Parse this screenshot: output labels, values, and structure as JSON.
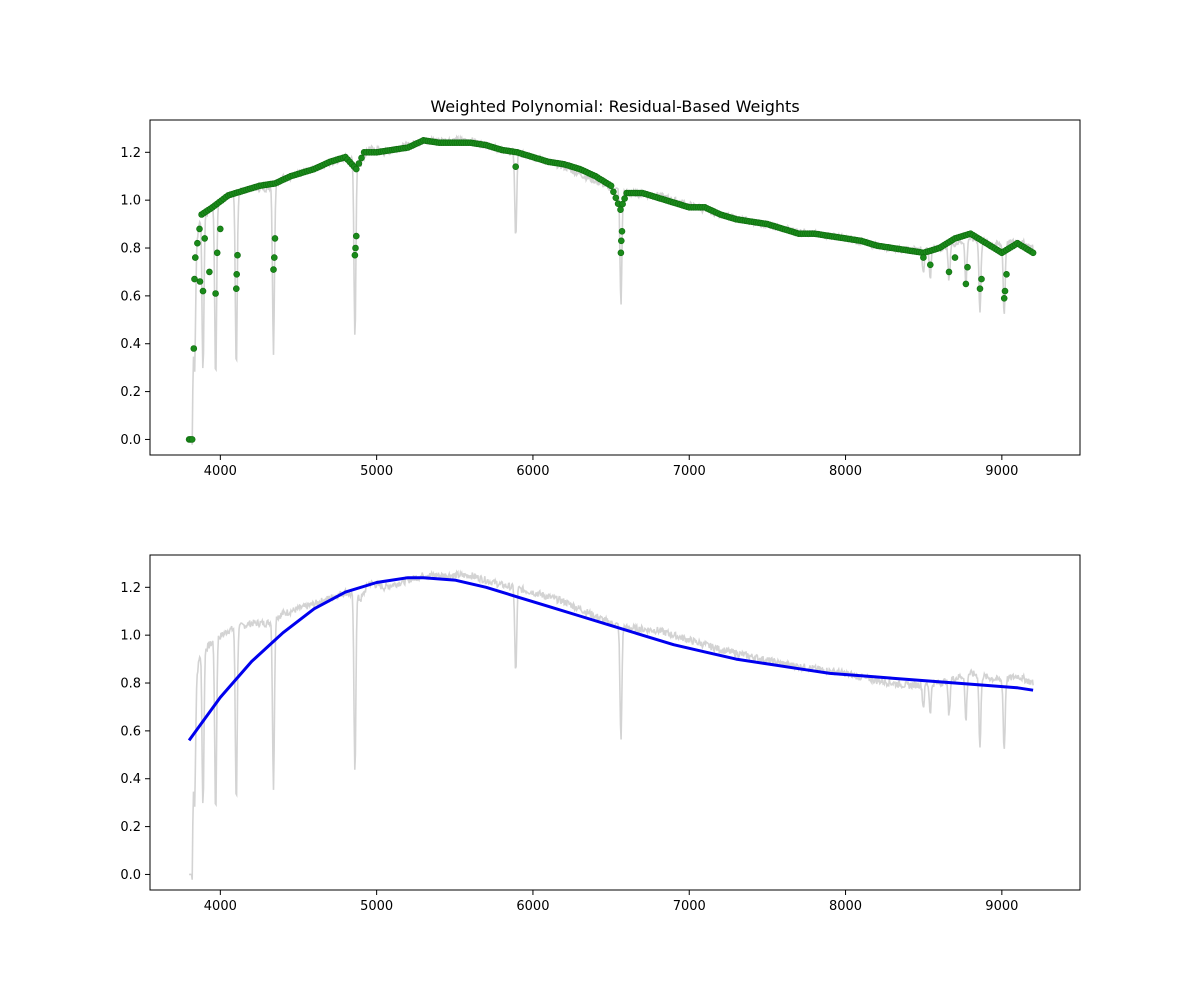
{
  "chart_data": [
    {
      "type": "scatter",
      "title": "Weighted Polynomial: Residual-Based Weights",
      "xlabel": "",
      "ylabel": "",
      "xlim": [
        3550,
        9500
      ],
      "ylim": [
        -0.065,
        1.335
      ],
      "xticks": [
        4000,
        5000,
        6000,
        7000,
        8000,
        9000
      ],
      "yticks": [
        0.0,
        0.2,
        0.4,
        0.6,
        0.8,
        1.0,
        1.2
      ],
      "grid": false,
      "colors": {
        "spectrum": "#d3d3d3",
        "points": "#1a8a1a",
        "points_edge": "#0f6b0f"
      },
      "spectrum_continuum": [
        [
          3800,
          0.0
        ],
        [
          3820,
          0.0
        ],
        [
          3830,
          0.75
        ],
        [
          3870,
          0.92
        ],
        [
          3950,
          0.97
        ],
        [
          4050,
          1.02
        ],
        [
          4200,
          1.05
        ],
        [
          4300,
          1.05
        ],
        [
          4400,
          1.09
        ],
        [
          4600,
          1.13
        ],
        [
          4800,
          1.18
        ],
        [
          4900,
          1.15
        ],
        [
          4950,
          1.22
        ],
        [
          5050,
          1.2
        ],
        [
          5150,
          1.22
        ],
        [
          5300,
          1.25
        ],
        [
          5450,
          1.25
        ],
        [
          5600,
          1.25
        ],
        [
          5800,
          1.21
        ],
        [
          6000,
          1.18
        ],
        [
          6200,
          1.14
        ],
        [
          6400,
          1.08
        ],
        [
          6500,
          1.05
        ],
        [
          6600,
          1.03
        ],
        [
          6800,
          1.02
        ],
        [
          7000,
          0.98
        ],
        [
          7200,
          0.94
        ],
        [
          7400,
          0.91
        ],
        [
          7600,
          0.88
        ],
        [
          7800,
          0.86
        ],
        [
          8000,
          0.84
        ],
        [
          8200,
          0.81
        ],
        [
          8400,
          0.79
        ],
        [
          8600,
          0.8
        ],
        [
          8800,
          0.84
        ],
        [
          9000,
          0.81
        ],
        [
          9100,
          0.83
        ],
        [
          9200,
          0.8
        ]
      ],
      "spectrum_absorption": [
        [
          3835,
          0.27
        ],
        [
          3889,
          0.29
        ],
        [
          3970,
          0.26
        ],
        [
          4102,
          0.3
        ],
        [
          4340,
          0.36
        ],
        [
          4861,
          0.43
        ],
        [
          5890,
          0.84
        ],
        [
          6563,
          0.56
        ],
        [
          8498,
          0.7
        ],
        [
          8542,
          0.68
        ],
        [
          8662,
          0.66
        ],
        [
          8770,
          0.64
        ],
        [
          8860,
          0.53
        ],
        [
          9015,
          0.52
        ]
      ],
      "weighted_points_continuum": [
        [
          3800,
          0.0
        ],
        [
          3820,
          0.0
        ],
        [
          3840,
          0.76
        ],
        [
          3880,
          0.94
        ],
        [
          3950,
          0.97
        ],
        [
          4050,
          1.02
        ],
        [
          4150,
          1.04
        ],
        [
          4250,
          1.06
        ],
        [
          4350,
          1.07
        ],
        [
          4450,
          1.1
        ],
        [
          4600,
          1.13
        ],
        [
          4700,
          1.16
        ],
        [
          4800,
          1.18
        ],
        [
          4870,
          1.13
        ],
        [
          4920,
          1.2
        ],
        [
          5000,
          1.2
        ],
        [
          5100,
          1.21
        ],
        [
          5200,
          1.22
        ],
        [
          5300,
          1.25
        ],
        [
          5400,
          1.24
        ],
        [
          5500,
          1.24
        ],
        [
          5600,
          1.24
        ],
        [
          5700,
          1.23
        ],
        [
          5800,
          1.21
        ],
        [
          5900,
          1.2
        ],
        [
          6000,
          1.18
        ],
        [
          6100,
          1.16
        ],
        [
          6200,
          1.15
        ],
        [
          6300,
          1.13
        ],
        [
          6400,
          1.1
        ],
        [
          6500,
          1.06
        ],
        [
          6560,
          0.96
        ],
        [
          6600,
          1.03
        ],
        [
          6700,
          1.03
        ],
        [
          6800,
          1.01
        ],
        [
          6900,
          0.99
        ],
        [
          7000,
          0.97
        ],
        [
          7100,
          0.97
        ],
        [
          7200,
          0.94
        ],
        [
          7300,
          0.92
        ],
        [
          7400,
          0.91
        ],
        [
          7500,
          0.9
        ],
        [
          7600,
          0.88
        ],
        [
          7700,
          0.86
        ],
        [
          7800,
          0.86
        ],
        [
          7900,
          0.85
        ],
        [
          8000,
          0.84
        ],
        [
          8100,
          0.83
        ],
        [
          8200,
          0.81
        ],
        [
          8300,
          0.8
        ],
        [
          8400,
          0.79
        ],
        [
          8500,
          0.78
        ],
        [
          8600,
          0.8
        ],
        [
          8700,
          0.84
        ],
        [
          8800,
          0.86
        ],
        [
          8900,
          0.82
        ],
        [
          9000,
          0.78
        ],
        [
          9100,
          0.82
        ],
        [
          9200,
          0.78
        ]
      ],
      "weighted_points_dips": [
        [
          3835,
          0.67
        ],
        [
          3870,
          0.66
        ],
        [
          3889,
          0.62
        ],
        [
          3900,
          0.84
        ],
        [
          3930,
          0.7
        ],
        [
          3970,
          0.61
        ],
        [
          3980,
          0.78
        ],
        [
          4000,
          0.88
        ],
        [
          4102,
          0.63
        ],
        [
          4105,
          0.69
        ],
        [
          4110,
          0.77
        ],
        [
          4340,
          0.71
        ],
        [
          4345,
          0.76
        ],
        [
          4350,
          0.84
        ],
        [
          4861,
          0.77
        ],
        [
          4865,
          0.8
        ],
        [
          4870,
          0.85
        ],
        [
          5890,
          1.14
        ],
        [
          6563,
          0.78
        ],
        [
          6565,
          0.83
        ],
        [
          6570,
          0.87
        ],
        [
          8498,
          0.76
        ],
        [
          8542,
          0.73
        ],
        [
          8662,
          0.7
        ],
        [
          8700,
          0.76
        ],
        [
          8770,
          0.65
        ],
        [
          8780,
          0.72
        ],
        [
          8860,
          0.63
        ],
        [
          8870,
          0.67
        ],
        [
          9015,
          0.59
        ],
        [
          9020,
          0.62
        ],
        [
          9030,
          0.69
        ]
      ]
    },
    {
      "type": "line",
      "title": "",
      "xlabel": "",
      "ylabel": "",
      "xlim": [
        3550,
        9500
      ],
      "ylim": [
        -0.065,
        1.335
      ],
      "xticks": [
        4000,
        5000,
        6000,
        7000,
        8000,
        9000
      ],
      "yticks": [
        0.0,
        0.2,
        0.4,
        0.6,
        0.8,
        1.0,
        1.2
      ],
      "grid": false,
      "colors": {
        "spectrum": "#d3d3d3",
        "fit": "#0000ee"
      },
      "fit": [
        [
          3800,
          0.56
        ],
        [
          3900,
          0.65
        ],
        [
          4000,
          0.74
        ],
        [
          4200,
          0.89
        ],
        [
          4400,
          1.01
        ],
        [
          4600,
          1.11
        ],
        [
          4800,
          1.18
        ],
        [
          5000,
          1.22
        ],
        [
          5200,
          1.24
        ],
        [
          5300,
          1.24
        ],
        [
          5500,
          1.23
        ],
        [
          5700,
          1.2
        ],
        [
          5900,
          1.16
        ],
        [
          6100,
          1.12
        ],
        [
          6300,
          1.08
        ],
        [
          6500,
          1.04
        ],
        [
          6700,
          1.0
        ],
        [
          6900,
          0.96
        ],
        [
          7100,
          0.93
        ],
        [
          7300,
          0.9
        ],
        [
          7500,
          0.88
        ],
        [
          7700,
          0.86
        ],
        [
          7900,
          0.84
        ],
        [
          8100,
          0.83
        ],
        [
          8300,
          0.82
        ],
        [
          8500,
          0.81
        ],
        [
          8700,
          0.8
        ],
        [
          8900,
          0.79
        ],
        [
          9100,
          0.78
        ],
        [
          9200,
          0.77
        ]
      ]
    }
  ]
}
